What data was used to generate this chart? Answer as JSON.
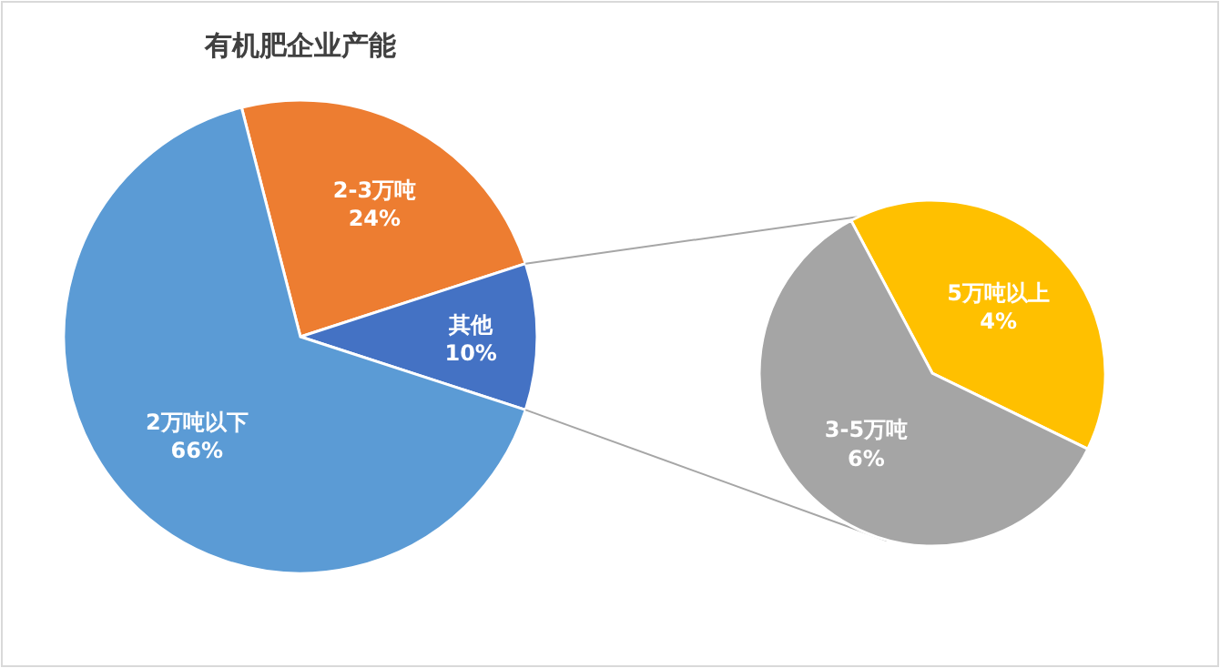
{
  "chart_data": [
    {
      "type": "pie",
      "title": "有机肥企业产能",
      "categories": [
        "2-3万吨",
        "其他",
        "2万吨以下"
      ],
      "values": [
        24,
        10,
        66
      ],
      "value_labels": [
        "24%",
        "10%",
        "66%"
      ],
      "colors": [
        "#ed7d31",
        "#4472c4",
        "#5b9bd5"
      ]
    },
    {
      "type": "pie",
      "categories": [
        "5万吨以上",
        "3-5万吨"
      ],
      "values": [
        4,
        6
      ],
      "value_labels": [
        "4%",
        "6%"
      ],
      "colors": [
        "#ffc000",
        "#a5a5a5"
      ]
    }
  ]
}
